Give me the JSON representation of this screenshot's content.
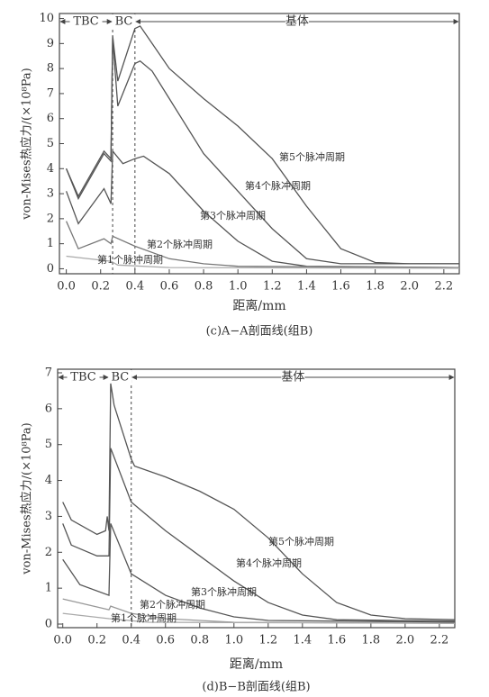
{
  "chart_data": [
    {
      "type": "line",
      "xlabel": "距离/mm",
      "ylabel": "von-Mises热应力/(×10⁸Pa)",
      "caption": "(c)A−A剖面线(组B)",
      "xlim": [
        -0.04,
        2.29
      ],
      "ylim": [
        -0.2,
        10.2
      ],
      "xticks": [
        {
          "value": 0,
          "label": "0.0"
        },
        {
          "value": 0.2,
          "label": "0.2"
        },
        {
          "value": 0.4,
          "label": "0.4"
        },
        {
          "value": 0.6,
          "label": "0.6"
        },
        {
          "value": 0.8,
          "label": "0.8"
        },
        {
          "value": 1.0,
          "label": "1.0"
        },
        {
          "value": 1.2,
          "label": "1.2"
        },
        {
          "value": 1.4,
          "label": "1.4"
        },
        {
          "value": 1.6,
          "label": "1.6"
        },
        {
          "value": 1.8,
          "label": "1.8"
        },
        {
          "value": 2.0,
          "label": "2.0"
        },
        {
          "value": 2.2,
          "label": "2.2"
        }
      ],
      "yticks": [
        0,
        1,
        2,
        3,
        4,
        5,
        6,
        7,
        8,
        9,
        10
      ],
      "vlines": [
        0.27,
        0.4
      ],
      "regions": [
        {
          "label": "TBC",
          "from": -0.04,
          "to": 0.27
        },
        {
          "label": "BC",
          "from": 0.27,
          "to": 0.4
        },
        {
          "label": "基体",
          "from": 0.4,
          "to": 2.29
        }
      ],
      "series": [
        {
          "name": "第5个脉冲周期",
          "color": "#555555",
          "x": [
            0,
            0.07,
            0.22,
            0.26,
            0.27,
            0.3,
            0.4,
            0.43,
            0.5,
            0.6,
            0.8,
            1.0,
            1.2,
            1.4,
            1.6,
            1.8,
            2.0,
            2.29
          ],
          "values": [
            4.0,
            2.9,
            4.7,
            4.4,
            9.3,
            7.5,
            9.6,
            9.7,
            9.0,
            8.0,
            6.8,
            5.7,
            4.4,
            2.5,
            0.8,
            0.25,
            0.2,
            0.2
          ]
        },
        {
          "name": "第4个脉冲周期",
          "color": "#555555",
          "x": [
            0,
            0.07,
            0.22,
            0.26,
            0.27,
            0.3,
            0.4,
            0.43,
            0.5,
            0.6,
            0.8,
            1.0,
            1.2,
            1.4,
            1.6,
            2.29
          ],
          "values": [
            4.0,
            2.8,
            4.6,
            4.3,
            9.2,
            6.5,
            8.2,
            8.3,
            7.9,
            6.8,
            4.6,
            3.1,
            1.6,
            0.4,
            0.2,
            0.2
          ]
        },
        {
          "name": "第3个脉冲周期",
          "color": "#555555",
          "x": [
            0,
            0.07,
            0.22,
            0.26,
            0.27,
            0.33,
            0.4,
            0.45,
            0.6,
            0.8,
            1.0,
            1.2,
            1.4,
            2.29
          ],
          "values": [
            3.1,
            1.8,
            3.2,
            2.6,
            4.7,
            4.2,
            4.4,
            4.5,
            3.8,
            2.3,
            1.1,
            0.3,
            0.1,
            0.05
          ]
        },
        {
          "name": "第2个脉冲周期",
          "color": "#777777",
          "x": [
            0,
            0.07,
            0.22,
            0.26,
            0.27,
            0.4,
            0.6,
            0.8,
            1.0,
            2.29
          ],
          "values": [
            1.9,
            0.8,
            1.2,
            1.0,
            1.3,
            0.9,
            0.4,
            0.2,
            0.1,
            0.05
          ]
        },
        {
          "name": "第1个脉冲周期",
          "color": "#aaaaaa",
          "x": [
            0,
            0.26,
            0.3,
            0.6,
            2.29
          ],
          "values": [
            0.5,
            0.3,
            0.15,
            0.05,
            0.02
          ]
        }
      ]
    },
    {
      "type": "line",
      "xlabel": "距离/mm",
      "ylabel": "von-Mises热应力/(×10⁸Pa)",
      "caption": "(d)B−B剖面线(组B)",
      "xlim": [
        -0.03,
        2.29
      ],
      "ylim": [
        -0.1,
        7.1
      ],
      "xticks": [
        {
          "value": 0,
          "label": "0.0"
        },
        {
          "value": 0.2,
          "label": "0.2"
        },
        {
          "value": 0.4,
          "label": "0.4"
        },
        {
          "value": 0.6,
          "label": "0.6"
        },
        {
          "value": 0.8,
          "label": "0.8"
        },
        {
          "value": 1.0,
          "label": "1.0"
        },
        {
          "value": 1.2,
          "label": "1.2"
        },
        {
          "value": 1.4,
          "label": "1.4"
        },
        {
          "value": 1.6,
          "label": "1.6"
        },
        {
          "value": 1.8,
          "label": "1.8"
        },
        {
          "value": 2.0,
          "label": "2.0"
        },
        {
          "value": 2.2,
          "label": "2.2"
        }
      ],
      "yticks": [
        0,
        1,
        2,
        3,
        4,
        5,
        6,
        7
      ],
      "vlines": [
        0.4
      ],
      "regions": [
        {
          "label": "TBC",
          "from": -0.03,
          "to": 0.27
        },
        {
          "label": "BC",
          "from": 0.27,
          "to": 0.4
        },
        {
          "label": "基体",
          "from": 0.4,
          "to": 2.29
        }
      ],
      "series": [
        {
          "name": "第5个脉冲周期",
          "color": "#555555",
          "x": [
            0,
            0.05,
            0.2,
            0.25,
            0.26,
            0.27,
            0.28,
            0.3,
            0.4,
            0.42,
            0.6,
            0.8,
            1.0,
            1.2,
            1.4,
            1.6,
            1.8,
            2.0,
            2.29
          ],
          "values": [
            3.4,
            2.9,
            2.5,
            2.6,
            3.0,
            2.6,
            6.7,
            6.1,
            4.6,
            4.4,
            4.1,
            3.7,
            3.2,
            2.4,
            1.4,
            0.6,
            0.25,
            0.15,
            0.12
          ]
        },
        {
          "name": "第4个脉冲周期",
          "color": "#555555",
          "x": [
            0,
            0.05,
            0.2,
            0.27,
            0.28,
            0.4,
            0.6,
            0.8,
            1.0,
            1.2,
            1.4,
            1.6,
            2.29
          ],
          "values": [
            2.8,
            2.2,
            1.9,
            1.9,
            4.9,
            3.4,
            2.6,
            1.9,
            1.2,
            0.6,
            0.25,
            0.12,
            0.08
          ]
        },
        {
          "name": "第3个脉冲周期",
          "color": "#555555",
          "x": [
            0,
            0.1,
            0.27,
            0.28,
            0.4,
            0.6,
            0.8,
            1.0,
            1.2,
            2.29
          ],
          "values": [
            1.8,
            1.1,
            0.8,
            2.8,
            1.4,
            0.8,
            0.45,
            0.2,
            0.1,
            0.05
          ]
        },
        {
          "name": "第2个脉冲周期",
          "color": "#999999",
          "x": [
            0,
            0.27,
            0.28,
            0.4,
            0.6,
            1.0,
            2.29
          ],
          "values": [
            0.7,
            0.4,
            0.5,
            0.3,
            0.15,
            0.05,
            0.02
          ]
        },
        {
          "name": "第1个脉冲周期",
          "color": "#aaaaaa",
          "x": [
            0,
            0.27,
            0.5,
            2.29
          ],
          "values": [
            0.3,
            0.15,
            0.05,
            0.02
          ]
        }
      ]
    }
  ]
}
